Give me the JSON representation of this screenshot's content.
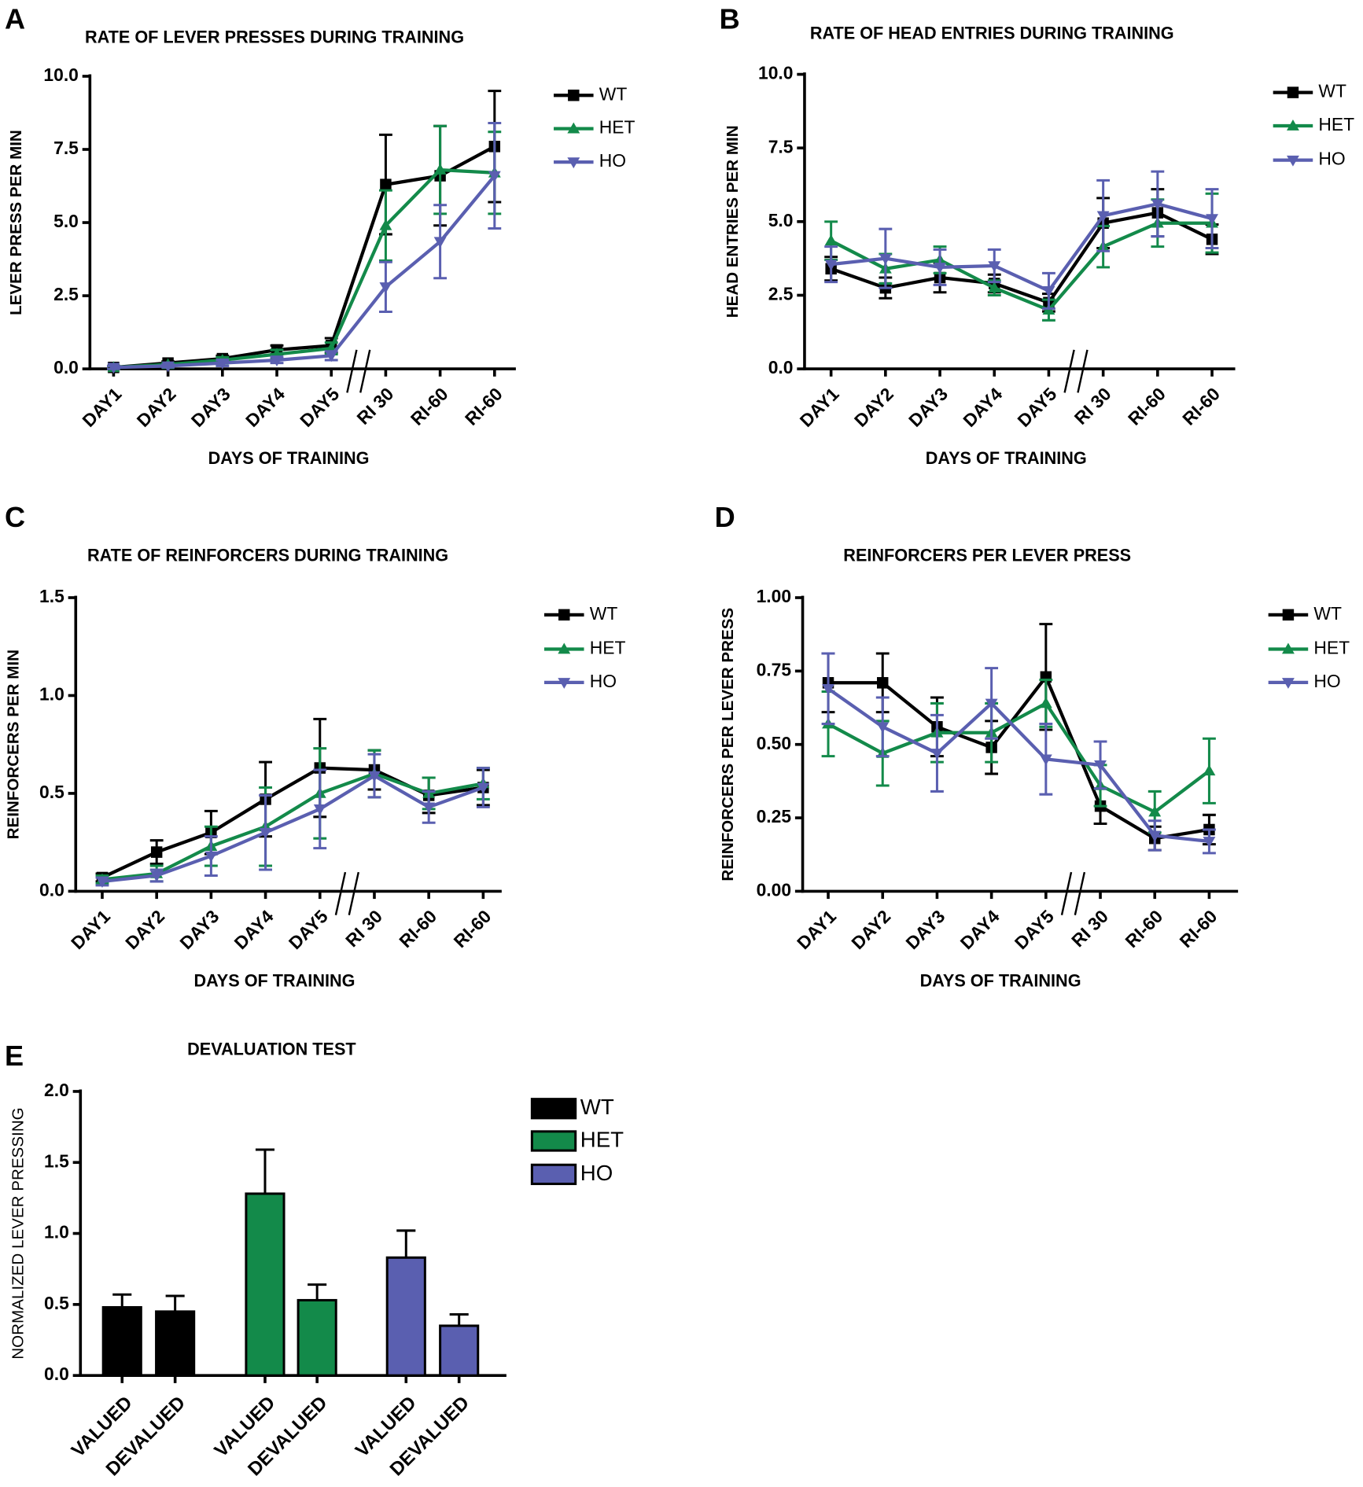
{
  "chart_data": [
    {
      "type": "line",
      "panel": "A",
      "title": "RATE OF LEVER PRESSES DURING TRAINING",
      "x_label": "DAYS OF TRAINING",
      "y_label": "LEVER PRESS PER MIN",
      "categories": [
        "DAY1",
        "DAY2",
        "DAY3",
        "DAY4",
        "DAY5",
        "RI 30",
        "RI-60",
        "RI-60"
      ],
      "ylim": [
        0,
        10
      ],
      "yticks": [
        {
          "value": 0,
          "label": "0.0"
        },
        2.5,
        {
          "value": 5,
          "label": "5.0"
        },
        7.5,
        {
          "value": 10,
          "label": "10.0"
        }
      ],
      "series": [
        {
          "name": "WT",
          "color": "#000000",
          "marker": "square",
          "values": [
            0.05,
            0.2,
            0.35,
            0.65,
            0.8,
            6.3,
            6.6,
            7.6
          ],
          "errors": [
            0.05,
            0.05,
            0.1,
            0.15,
            0.25,
            1.7,
            1.7,
            1.9
          ]
        },
        {
          "name": "HET",
          "color": "#138a4a",
          "marker": "triangle-up",
          "values": [
            0.05,
            0.15,
            0.3,
            0.5,
            0.7,
            4.9,
            6.8,
            6.7
          ],
          "errors": [
            0.05,
            0.05,
            0.1,
            0.15,
            0.2,
            1.2,
            1.5,
            1.4
          ]
        },
        {
          "name": "HO",
          "color": "#5a5fb0",
          "marker": "triangle-down",
          "values": [
            0.05,
            0.1,
            0.2,
            0.3,
            0.45,
            2.8,
            4.35,
            6.6
          ],
          "errors": [
            0.05,
            0.05,
            0.1,
            0.1,
            0.15,
            0.85,
            1.25,
            1.8
          ]
        }
      ]
    },
    {
      "type": "line",
      "panel": "B",
      "title": "RATE OF HEAD ENTRIES DURING TRAINING",
      "x_label": "DAYS OF TRAINING",
      "y_label": "HEAD ENTRIES PER MIN",
      "categories": [
        "DAY1",
        "DAY2",
        "DAY3",
        "DAY4",
        "DAY5",
        "RI 30",
        "RI-60",
        "RI-60"
      ],
      "ylim": [
        0,
        10
      ],
      "yticks": [
        {
          "value": 0,
          "label": "0.0"
        },
        2.5,
        {
          "value": 5,
          "label": "5.0"
        },
        7.5,
        {
          "value": 10,
          "label": "10.0"
        }
      ],
      "series": [
        {
          "name": "WT",
          "color": "#000000",
          "marker": "square",
          "values": [
            3.4,
            2.75,
            3.1,
            2.9,
            2.25,
            4.95,
            5.3,
            4.4
          ],
          "errors": [
            0.4,
            0.35,
            0.5,
            0.3,
            0.3,
            0.85,
            0.8,
            0.5
          ]
        },
        {
          "name": "HET",
          "color": "#138a4a",
          "marker": "triangle-up",
          "values": [
            4.35,
            3.4,
            3.7,
            2.75,
            2.0,
            4.15,
            4.95,
            4.95
          ],
          "errors": [
            0.65,
            0.5,
            0.45,
            0.25,
            0.35,
            0.7,
            0.8,
            1.0
          ]
        },
        {
          "name": "HO",
          "color": "#5a5fb0",
          "marker": "triangle-down",
          "values": [
            3.55,
            3.75,
            3.45,
            3.5,
            2.65,
            5.2,
            5.6,
            5.1
          ],
          "errors": [
            0.6,
            1.0,
            0.6,
            0.55,
            0.6,
            1.2,
            1.1,
            1.0
          ]
        }
      ]
    },
    {
      "type": "line",
      "panel": "C",
      "title": "RATE OF REINFORCERS DURING TRAINING",
      "x_label": "DAYS OF TRAINING",
      "y_label": "REINFORCERS PER MIN",
      "categories": [
        "DAY1",
        "DAY2",
        "DAY3",
        "DAY4",
        "DAY5",
        "RI 30",
        "RI-60",
        "RI-60"
      ],
      "ylim": [
        0,
        1.5
      ],
      "yticks": [
        {
          "value": 0,
          "label": "0.0"
        },
        0.5,
        {
          "value": 1,
          "label": "1.0"
        },
        1.5
      ],
      "series": [
        {
          "name": "WT",
          "color": "#000000",
          "marker": "square",
          "values": [
            0.07,
            0.2,
            0.3,
            0.47,
            0.63,
            0.62,
            0.49,
            0.53
          ],
          "errors": [
            0.02,
            0.06,
            0.11,
            0.19,
            0.25,
            0.1,
            0.09,
            0.09
          ]
        },
        {
          "name": "HET",
          "color": "#138a4a",
          "marker": "triangle-up",
          "values": [
            0.06,
            0.09,
            0.23,
            0.33,
            0.5,
            0.6,
            0.5,
            0.55
          ],
          "errors": [
            0.02,
            0.04,
            0.1,
            0.2,
            0.23,
            0.12,
            0.08,
            0.08
          ]
        },
        {
          "name": "HO",
          "color": "#5a5fb0",
          "marker": "triangle-down",
          "values": [
            0.05,
            0.08,
            0.18,
            0.3,
            0.42,
            0.59,
            0.43,
            0.53
          ],
          "errors": [
            0.02,
            0.03,
            0.1,
            0.19,
            0.2,
            0.11,
            0.08,
            0.1
          ]
        }
      ]
    },
    {
      "type": "line",
      "panel": "D",
      "title": "REINFORCERS PER LEVER PRESS",
      "x_label": "DAYS OF TRAINING",
      "y_label": "REINFORCERS PER LEVER PRESS",
      "categories": [
        "DAY1",
        "DAY2",
        "DAY3",
        "DAY4",
        "DAY5",
        "RI 30",
        "RI-60",
        "RI-60"
      ],
      "ylim": [
        0,
        1
      ],
      "yticks": [
        {
          "value": 0,
          "label": "0.00"
        },
        0.25,
        {
          "value": 0.5,
          "label": "0.50"
        },
        0.75,
        {
          "value": 1,
          "label": "1.00"
        }
      ],
      "series": [
        {
          "name": "WT",
          "color": "#000000",
          "marker": "square",
          "values": [
            0.71,
            0.71,
            0.56,
            0.49,
            0.73,
            0.29,
            0.18,
            0.21
          ],
          "errors": [
            0.1,
            0.1,
            0.1,
            0.09,
            0.18,
            0.06,
            0.04,
            0.05
          ]
        },
        {
          "name": "HET",
          "color": "#138a4a",
          "marker": "triangle-up",
          "values": [
            0.57,
            0.47,
            0.54,
            0.54,
            0.64,
            0.36,
            0.27,
            0.41
          ],
          "errors": [
            0.11,
            0.11,
            0.1,
            0.1,
            0.08,
            0.07,
            0.07,
            0.11
          ]
        },
        {
          "name": "HO",
          "color": "#5a5fb0",
          "marker": "triangle-down",
          "values": [
            0.69,
            0.56,
            0.47,
            0.64,
            0.45,
            0.43,
            0.19,
            0.17
          ],
          "errors": [
            0.12,
            0.1,
            0.13,
            0.12,
            0.12,
            0.08,
            0.05,
            0.04
          ]
        }
      ]
    },
    {
      "type": "bar",
      "panel": "E",
      "title": "DEVALUATION TEST",
      "y_label": "NORMALIZED LEVER PRESSING",
      "categories": [
        "VALUED",
        "DEVALUED"
      ],
      "ylim": [
        0,
        2
      ],
      "yticks": [
        {
          "value": 0,
          "label": "0.0"
        },
        0.5,
        {
          "value": 1,
          "label": "1.0"
        },
        1.5,
        {
          "value": 2,
          "label": "2.0"
        }
      ],
      "series": [
        {
          "name": "WT",
          "color": "#000000",
          "values": [
            0.48,
            0.45
          ],
          "errors": [
            0.09,
            0.11
          ]
        },
        {
          "name": "HET",
          "color": "#138a4a",
          "values": [
            1.28,
            0.53
          ],
          "errors": [
            0.31,
            0.11
          ]
        },
        {
          "name": "HO",
          "color": "#5a5fb0",
          "values": [
            0.83,
            0.35
          ],
          "errors": [
            0.19,
            0.08
          ]
        }
      ]
    }
  ]
}
